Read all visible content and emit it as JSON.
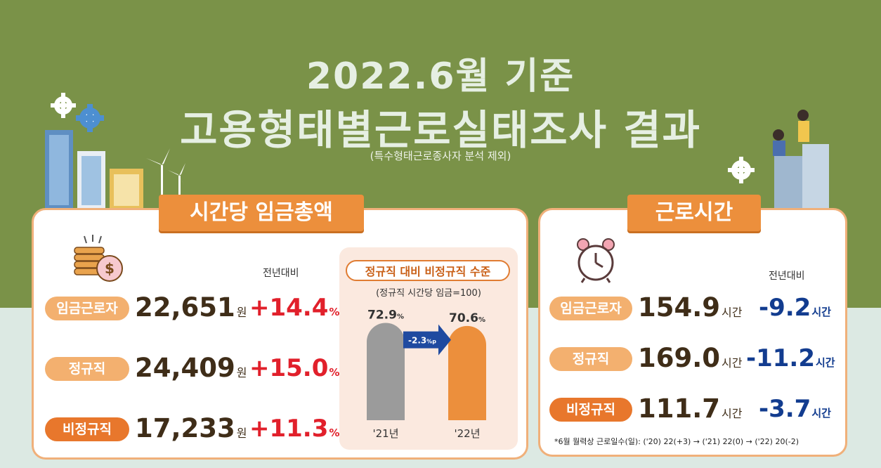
{
  "title_line1": "2022.6월 기준",
  "title_line2": "고용형태별근로실태조사 결과",
  "subtitle": "(특수형태근로종사자 분석 제외)",
  "wage": {
    "section_title": "시간당 임금총액",
    "compare_label": "전년대비",
    "unit": "원",
    "rows": [
      {
        "label": "임금근로자",
        "value": "22,651",
        "change": "+14.4",
        "pct": "%"
      },
      {
        "label": "정규직",
        "value": "24,409",
        "change": "+15.0",
        "pct": "%"
      },
      {
        "label": "비정규직",
        "value": "17,233",
        "change": "+11.3",
        "pct": "%"
      }
    ]
  },
  "chart_data": {
    "type": "bar",
    "title": "정규직 대비 비정규직 수준",
    "note": "(정규직 시간당 임금=100)",
    "categories": [
      "'21년",
      "'22년"
    ],
    "values": [
      72.9,
      70.6
    ],
    "value_labels": [
      "72.9",
      "70.6"
    ],
    "value_unit": "%",
    "change_label": "-2.3",
    "change_unit": "%p",
    "colors": [
      "#9b9b9b",
      "#ec8f3c"
    ],
    "ylim": [
      0,
      100
    ]
  },
  "hours": {
    "section_title": "근로시간",
    "compare_label": "전년대비",
    "unit": "시간",
    "rows": [
      {
        "label": "임금근로자",
        "value": "154.9",
        "change": "-9.2"
      },
      {
        "label": "정규직",
        "value": "169.0",
        "change": "-11.2"
      },
      {
        "label": "비정규직",
        "value": "111.7",
        "change": "-3.7"
      }
    ],
    "footnote": "*6월 월력상 근로일수(일): ('20) 22(+3) → ('21) 22(0) → ('22) 20(-2)"
  },
  "icons": [
    "coin-stack-icon",
    "alarm-clock-icon",
    "gear-icon",
    "city-buildings-icon",
    "wind-turbine-icon",
    "people-illustration-icon"
  ],
  "colors": {
    "background": "#7a9248",
    "accent": "#ec8f3c",
    "increase": "#e1202b",
    "decrease": "#123c8f"
  }
}
